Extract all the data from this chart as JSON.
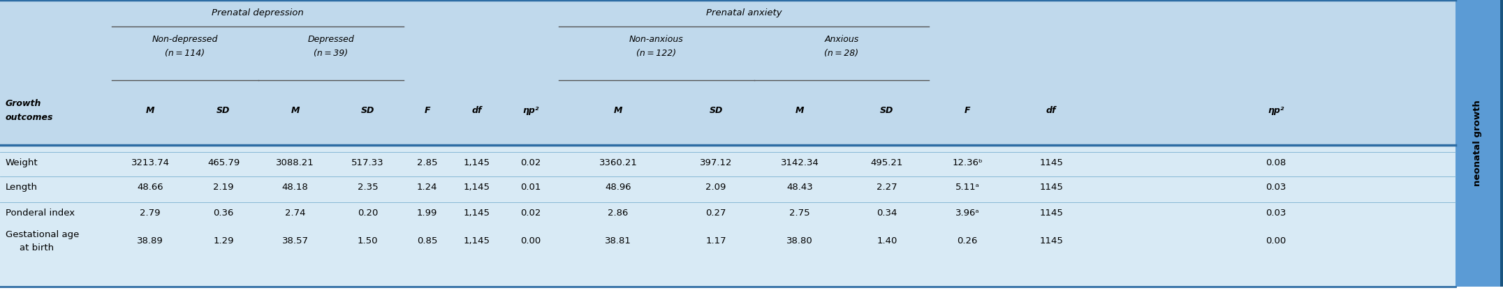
{
  "bg_header": "#c0d9ec",
  "bg_data": "#d8eaf5",
  "bg_data_alt": "#cce0f0",
  "sidebar_color": "#5b9bd5",
  "sidebar_text": "neonatal growth",
  "prenatal_depression_label": "Prenatal depression",
  "prenatal_anxiety_label": "Prenatal anxiety",
  "non_depressed_label": "Non-depressed",
  "non_depressed_n": "(n = 114)",
  "depressed_label": "Depressed",
  "depressed_n": "(n = 39)",
  "non_anxious_label": "Non-anxious",
  "non_anxious_n": "(n = 122)",
  "anxious_label": "Anxious",
  "anxious_n": "(n = 28)",
  "col_headers": [
    "M",
    "SD",
    "M",
    "SD",
    "F",
    "df",
    "ηp²",
    "M",
    "SD",
    "M",
    "SD",
    "F",
    "df",
    "ηp²"
  ],
  "rows": [
    {
      "label": "Weight",
      "label2": "",
      "vals": [
        "3213.74",
        "465.79",
        "3088.21",
        "517.33",
        "2.85",
        "1,145",
        "0.02",
        "3360.21",
        "397.12",
        "3142.34",
        "495.21",
        "12.36ᵇ",
        "1145",
        "0.08"
      ]
    },
    {
      "label": "Length",
      "label2": "",
      "vals": [
        "48.66",
        "2.19",
        "48.18",
        "2.35",
        "1.24",
        "1,145",
        "0.01",
        "48.96",
        "2.09",
        "48.43",
        "2.27",
        "5.11ᵃ",
        "1145",
        "0.03"
      ]
    },
    {
      "label": "Ponderal index",
      "label2": "",
      "vals": [
        "2.79",
        "0.36",
        "2.74",
        "0.20",
        "1.99",
        "1,145",
        "0.02",
        "2.86",
        "0.27",
        "2.75",
        "0.34",
        "3.96ᵃ",
        "1145",
        "0.03"
      ]
    },
    {
      "label": "Gestational age",
      "label2": "at birth",
      "vals": [
        "38.89",
        "1.29",
        "38.57",
        "1.50",
        "0.85",
        "1,145",
        "0.00",
        "38.81",
        "1.17",
        "38.80",
        "1.40",
        "0.26",
        "1145",
        "0.00"
      ]
    }
  ],
  "top_border_color": "#2e6da4",
  "mid_border_color": "#2e6da4",
  "line_color": "#7ab0d0",
  "sidebar_right_border": "#1a5580"
}
